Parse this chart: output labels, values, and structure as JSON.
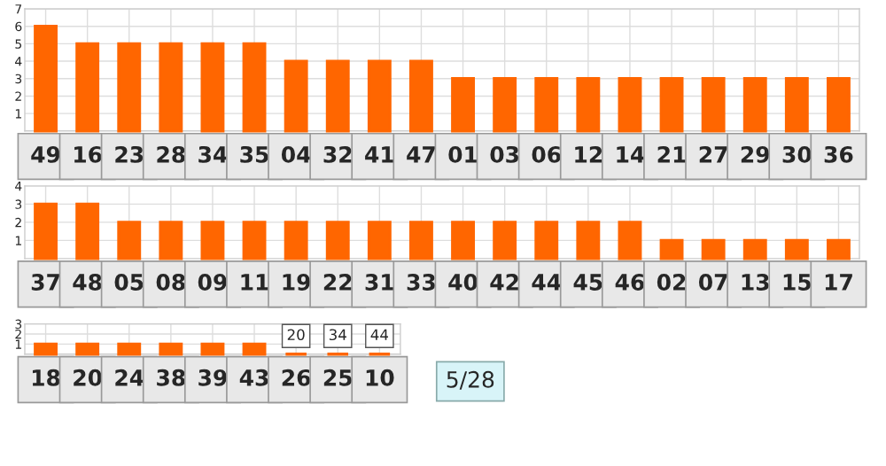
{
  "chart_data": [
    {
      "type": "bar",
      "categories": [
        "49",
        "16",
        "23",
        "28",
        "34",
        "35",
        "04",
        "32",
        "41",
        "47",
        "01",
        "03",
        "06",
        "12",
        "14",
        "21",
        "27",
        "29",
        "30",
        "36"
      ],
      "values": [
        6,
        5,
        5,
        5,
        5,
        5,
        4,
        4,
        4,
        4,
        3,
        3,
        3,
        3,
        3,
        3,
        3,
        3,
        3,
        3
      ],
      "color": "#ff6600",
      "ylim": [
        0,
        7
      ],
      "yticks": [
        1,
        2,
        3,
        4,
        5,
        6,
        7
      ],
      "grid": true
    },
    {
      "type": "bar",
      "categories": [
        "37",
        "48",
        "05",
        "08",
        "09",
        "11",
        "19",
        "22",
        "31",
        "33",
        "40",
        "42",
        "44",
        "45",
        "46",
        "02",
        "07",
        "13",
        "15",
        "17"
      ],
      "values": [
        3,
        3,
        2,
        2,
        2,
        2,
        2,
        2,
        2,
        2,
        2,
        2,
        2,
        2,
        2,
        1,
        1,
        1,
        1,
        1
      ],
      "color": "#ff6600",
      "ylim": [
        0,
        4
      ],
      "yticks": [
        1,
        2,
        3,
        4
      ],
      "grid": true
    },
    {
      "type": "bar",
      "categories": [
        "18",
        "20",
        "24",
        "38",
        "39",
        "43",
        "26",
        "25",
        "10"
      ],
      "values": [
        1,
        1,
        1,
        1,
        1,
        1,
        0,
        0,
        0
      ],
      "color": "#ff6600",
      "ylim": [
        0,
        3
      ],
      "yticks": [
        1,
        2,
        3
      ],
      "grid": true,
      "annotations": [
        {
          "text": "20",
          "x": "26",
          "y": 1.8
        },
        {
          "text": "34",
          "x": "25",
          "y": 1.8
        },
        {
          "text": "44",
          "x": "10",
          "y": 1.8
        },
        "5/28"
      ]
    }
  ]
}
